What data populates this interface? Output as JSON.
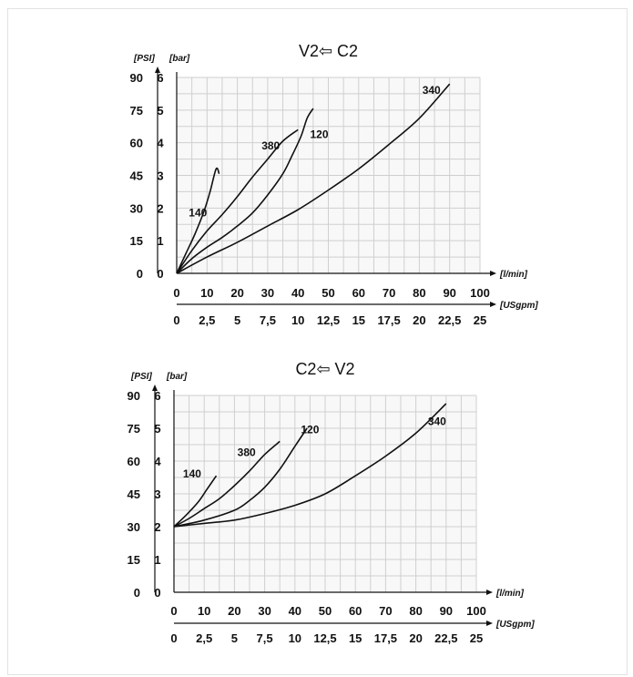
{
  "chart_data": [
    {
      "type": "line",
      "title": "V2⇦ C2",
      "x_unit_label": "[l/min]",
      "x2_unit_label": "[USgpm]",
      "y_unit_label": "[bar]",
      "y2_unit_label": "[PSI]",
      "xlim": [
        0,
        100
      ],
      "ylim": [
        0,
        6
      ],
      "grid": true,
      "x_ticks": [
        "0",
        "10",
        "20",
        "30",
        "40",
        "50",
        "60",
        "70",
        "80",
        "90",
        "100"
      ],
      "x2_ticks": [
        "0",
        "2,5",
        "5",
        "7,5",
        "10",
        "12,5",
        "15",
        "17,5",
        "20",
        "22,5",
        "25"
      ],
      "y_ticks": [
        "0",
        "1",
        "2",
        "3",
        "4",
        "5",
        "6"
      ],
      "y2_ticks": [
        "0",
        "15",
        "30",
        "45",
        "60",
        "75",
        "90"
      ],
      "series": [
        {
          "name": "140",
          "x": [
            0,
            3,
            6,
            9,
            11,
            13,
            14
          ],
          "y": [
            0,
            0.6,
            1.2,
            1.9,
            2.5,
            3.2,
            3.05
          ]
        },
        {
          "name": "380",
          "x": [
            0,
            5,
            10,
            15,
            20,
            25,
            30,
            35,
            40
          ],
          "y": [
            0,
            0.7,
            1.3,
            1.8,
            2.35,
            2.95,
            3.5,
            4.05,
            4.4
          ]
        },
        {
          "name": "120",
          "x": [
            0,
            5,
            10,
            15,
            20,
            25,
            30,
            35,
            38,
            41,
            43,
            45
          ],
          "y": [
            0,
            0.45,
            0.8,
            1.1,
            1.45,
            1.85,
            2.4,
            3.05,
            3.6,
            4.2,
            4.75,
            5.05
          ]
        },
        {
          "name": "340",
          "x": [
            0,
            10,
            20,
            30,
            40,
            50,
            60,
            70,
            80,
            90
          ],
          "y": [
            0,
            0.5,
            0.95,
            1.45,
            1.95,
            2.55,
            3.2,
            3.95,
            4.75,
            5.8
          ]
        }
      ],
      "curve_labels": [
        {
          "name": "140",
          "x": 7,
          "y": 1.75
        },
        {
          "name": "380",
          "x": 31,
          "y": 3.8
        },
        {
          "name": "120",
          "x": 47,
          "y": 4.15
        },
        {
          "name": "340",
          "x": 84,
          "y": 5.5
        }
      ]
    },
    {
      "type": "line",
      "title": "C2⇦ V2",
      "x_unit_label": "[l/min]",
      "x2_unit_label": "[USgpm]",
      "y_unit_label": "[bar]",
      "y2_unit_label": "[PSI]",
      "xlim": [
        0,
        100
      ],
      "ylim": [
        0,
        6
      ],
      "grid": true,
      "x_ticks": [
        "0",
        "10",
        "20",
        "30",
        "40",
        "50",
        "60",
        "70",
        "80",
        "90",
        "100"
      ],
      "x2_ticks": [
        "0",
        "2,5",
        "5",
        "7,5",
        "10",
        "12,5",
        "15",
        "17,5",
        "20",
        "22,5",
        "25"
      ],
      "y_ticks": [
        "0",
        "1",
        "2",
        "3",
        "4",
        "5",
        "6"
      ],
      "y2_ticks": [
        "0",
        "15",
        "30",
        "45",
        "60",
        "75",
        "90"
      ],
      "series": [
        {
          "name": "140",
          "x": [
            0,
            4,
            8,
            11,
            14
          ],
          "y": [
            2,
            2.35,
            2.75,
            3.15,
            3.55
          ]
        },
        {
          "name": "380",
          "x": [
            0,
            5,
            10,
            15,
            20,
            25,
            30,
            35
          ],
          "y": [
            2,
            2.25,
            2.55,
            2.85,
            3.25,
            3.7,
            4.2,
            4.6
          ]
        },
        {
          "name": "120",
          "x": [
            0,
            10,
            20,
            25,
            30,
            35,
            40,
            44
          ],
          "y": [
            2,
            2.2,
            2.5,
            2.8,
            3.2,
            3.75,
            4.45,
            5.0
          ]
        },
        {
          "name": "340",
          "x": [
            0,
            10,
            20,
            30,
            40,
            50,
            60,
            70,
            80,
            90
          ],
          "y": [
            2,
            2.1,
            2.2,
            2.4,
            2.65,
            3.0,
            3.55,
            4.15,
            4.85,
            5.75
          ]
        }
      ],
      "curve_labels": [
        {
          "name": "140",
          "x": 6,
          "y": 3.5
        },
        {
          "name": "380",
          "x": 24,
          "y": 4.15
        },
        {
          "name": "120",
          "x": 45,
          "y": 4.85
        },
        {
          "name": "340",
          "x": 87,
          "y": 5.1
        }
      ]
    }
  ]
}
